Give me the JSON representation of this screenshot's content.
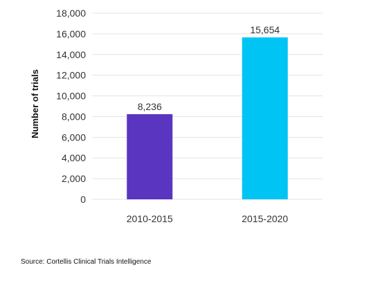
{
  "chart_data": {
    "type": "bar",
    "categories": [
      "2010-2015",
      "2015-2020"
    ],
    "values": [
      8236,
      15654
    ],
    "data_labels": [
      "8,236",
      "15,654"
    ],
    "colors": [
      "#5a35c0",
      "#00c4f3"
    ],
    "ylabel": "Number of trials",
    "xlabel": "",
    "ylim": [
      0,
      18000
    ],
    "yticks": [
      0,
      2000,
      4000,
      6000,
      8000,
      10000,
      12000,
      14000,
      16000,
      18000
    ],
    "ytick_labels": [
      "0",
      "2,000",
      "4,000",
      "6,000",
      "8,000",
      "10,000",
      "12,000",
      "14,000",
      "16,000",
      "18,000"
    ],
    "grid": true,
    "legend": "none"
  },
  "footer": {
    "source": "Source: Cortellis Clinical Trials Intelligence"
  }
}
